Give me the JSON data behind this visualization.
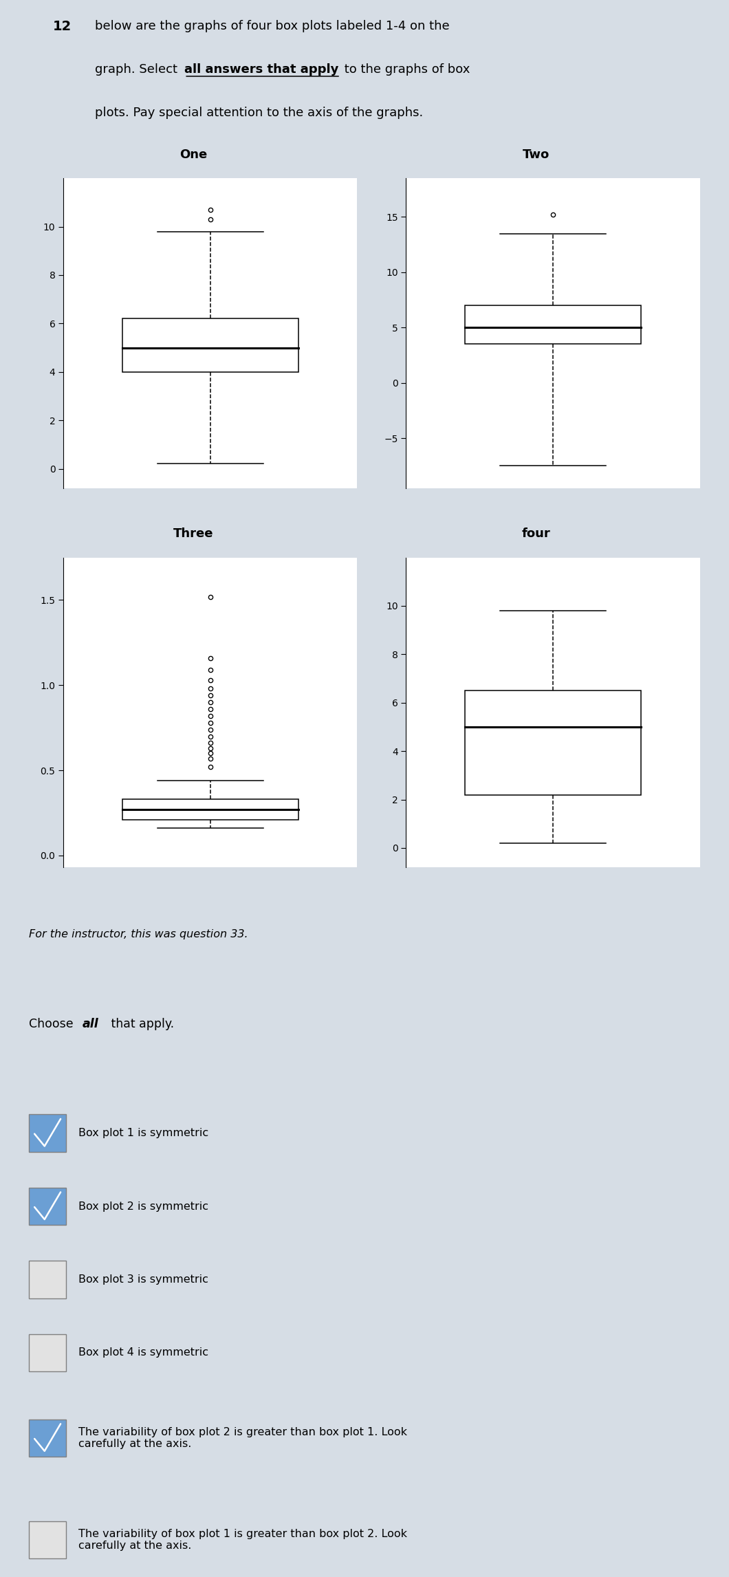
{
  "background_color": "#d6dde5",
  "panel_color": "#ffffff",
  "question_number": "12",
  "plots": [
    {
      "title": "One",
      "ylim": [
        -0.8,
        12.0
      ],
      "yticks": [
        0,
        2,
        4,
        6,
        8,
        10
      ],
      "whisker_low": 0.2,
      "q1": 4.0,
      "median": 5.0,
      "q3": 6.2,
      "whisker_high": 9.8,
      "outliers": [
        10.3,
        10.7
      ]
    },
    {
      "title": "Two",
      "ylim": [
        -9.5,
        18.5
      ],
      "yticks": [
        -5,
        0,
        5,
        10,
        15
      ],
      "whisker_low": -7.5,
      "q1": 3.5,
      "median": 5.0,
      "q3": 7.0,
      "whisker_high": 13.5,
      "outliers": [
        15.2
      ]
    },
    {
      "title": "Three",
      "ylim": [
        -0.07,
        1.75
      ],
      "yticks": [
        0.0,
        0.5,
        1.0,
        1.5
      ],
      "whisker_low": 0.16,
      "q1": 0.21,
      "median": 0.27,
      "q3": 0.33,
      "whisker_high": 0.44,
      "outliers": [
        0.52,
        0.57,
        0.6,
        0.63,
        0.66,
        0.7,
        0.74,
        0.78,
        0.82,
        0.86,
        0.9,
        0.94,
        0.98,
        1.03,
        1.09,
        1.16,
        1.52
      ]
    },
    {
      "title": "four",
      "ylim": [
        -0.8,
        12.0
      ],
      "yticks": [
        0,
        2,
        4,
        6,
        8,
        10
      ],
      "whisker_low": 0.2,
      "q1": 2.2,
      "median": 5.0,
      "q3": 6.5,
      "whisker_high": 9.8,
      "outliers": []
    }
  ],
  "instructor_note": "For the instructor, this was question 33.",
  "choices": [
    {
      "text": "Box plot 1 is symmetric",
      "checked": true
    },
    {
      "text": "Box plot 2 is symmetric",
      "checked": true
    },
    {
      "text": "Box plot 3 is symmetric",
      "checked": false
    },
    {
      "text": "Box plot 4 is symmetric",
      "checked": false
    },
    {
      "text": "The variability of box plot 2 is greater than box plot 1. Look\ncarefully at the axis.",
      "checked": true
    },
    {
      "text": "The variability of box plot 1 is greater than box plot 2. Look\ncarefully at the axis.",
      "checked": false
    }
  ]
}
